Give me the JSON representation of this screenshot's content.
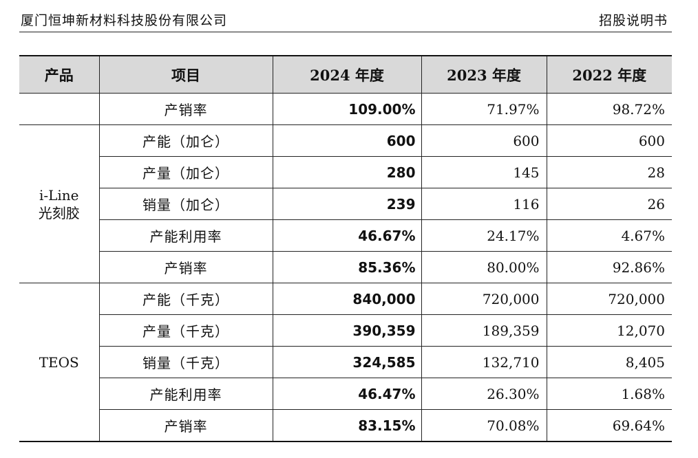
{
  "header": {
    "company": "厦门恒坤新材料科技股份有限公司",
    "doc_title": "招股说明书"
  },
  "table": {
    "columns": [
      "产品",
      "项目",
      "2024 年度",
      "2023 年度",
      "2022 年度"
    ],
    "groups": [
      {
        "product_lines": [
          "",
          ""
        ],
        "rows": [
          {
            "item": "产销率",
            "y2024": "109.00%",
            "y2023": "71.97%",
            "y2022": "98.72%"
          }
        ]
      },
      {
        "product_lines": [
          "i-Line",
          "光刻胶"
        ],
        "rows": [
          {
            "item": "产能（加仑）",
            "y2024": "600",
            "y2023": "600",
            "y2022": "600"
          },
          {
            "item": "产量（加仑）",
            "y2024": "280",
            "y2023": "145",
            "y2022": "28"
          },
          {
            "item": "销量（加仑）",
            "y2024": "239",
            "y2023": "116",
            "y2022": "26"
          },
          {
            "item": "产能利用率",
            "y2024": "46.67%",
            "y2023": "24.17%",
            "y2022": "4.67%"
          },
          {
            "item": "产销率",
            "y2024": "85.36%",
            "y2023": "80.00%",
            "y2022": "92.86%"
          }
        ]
      },
      {
        "product_lines": [
          "TEOS",
          ""
        ],
        "rows": [
          {
            "item": "产能（千克）",
            "y2024": "840,000",
            "y2023": "720,000",
            "y2022": "720,000"
          },
          {
            "item": "产量（千克）",
            "y2024": "390,359",
            "y2023": "189,359",
            "y2022": "12,070"
          },
          {
            "item": "销量（千克）",
            "y2024": "324,585",
            "y2023": "132,710",
            "y2022": "8,405"
          },
          {
            "item": "产能利用率",
            "y2024": "46.47%",
            "y2023": "26.30%",
            "y2022": "1.68%"
          },
          {
            "item": "产销率",
            "y2024": "83.15%",
            "y2023": "70.08%",
            "y2022": "69.64%"
          }
        ]
      }
    ]
  }
}
